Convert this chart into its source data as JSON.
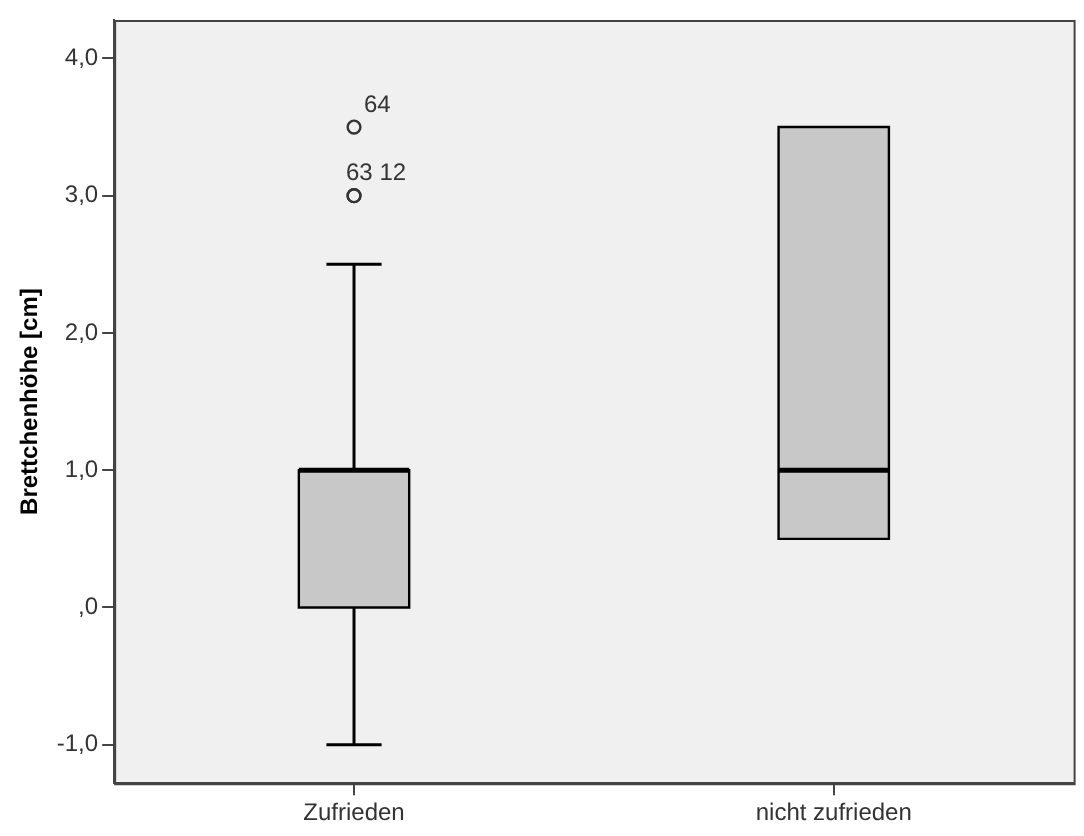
{
  "chart_data": {
    "type": "box",
    "ylabel": "Brettchenhöhe [cm]",
    "categories": [
      "Zufrieden",
      "nicht zufrieden"
    ],
    "series": [
      {
        "color": "#c8c8c8",
        "boxes": [
          {
            "low": -1.0,
            "q1": 0.0,
            "median": 1.0,
            "q3": 1.0,
            "high": 2.5
          },
          {
            "low": 0.5,
            "q1": 0.5,
            "median": 1.0,
            "q3": 3.5,
            "high": 3.5
          }
        ]
      },
      {
        "type": "scatter",
        "marker": "circle",
        "color": "#333333",
        "x": [
          "Zufrieden",
          "Zufrieden",
          "Zufrieden"
        ],
        "values": [
          3.5,
          3.0,
          3.0
        ]
      }
    ],
    "ylim": [
      -1.28,
      4.28
    ],
    "yticks": [
      {
        "value": -1,
        "label": "-1,0"
      },
      {
        "value": 0,
        "label": ",0"
      },
      {
        "value": 1,
        "label": "1,0"
      },
      {
        "value": 2,
        "label": "2,0"
      },
      {
        "value": 3,
        "label": "3,0"
      },
      {
        "value": 4,
        "label": "4,0"
      }
    ],
    "annotations": [
      {
        "text": "64",
        "x": "Zufrieden",
        "y": 3.5
      },
      {
        "text": "63 12",
        "x": "Zufrieden",
        "y": 3.0
      }
    ],
    "grid": false,
    "legend": false
  }
}
